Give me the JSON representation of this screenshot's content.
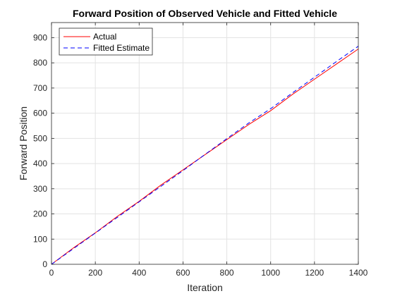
{
  "chart_data": {
    "type": "line",
    "title": "Forward Position of Observed Vehicle and Fitted Vehicle",
    "xlabel": "Iteration",
    "ylabel": "Forward Position",
    "xlim": [
      0,
      1400
    ],
    "ylim": [
      0,
      960
    ],
    "xticks": [
      0,
      200,
      400,
      600,
      800,
      1000,
      1200,
      1400
    ],
    "yticks": [
      0,
      100,
      200,
      300,
      400,
      500,
      600,
      700,
      800,
      900
    ],
    "grid": true,
    "legend_position": "top-left",
    "series": [
      {
        "name": "Actual",
        "color": "#ff0000",
        "style": "solid",
        "x": [
          0,
          100,
          200,
          300,
          400,
          500,
          600,
          700,
          800,
          900,
          1000,
          1100,
          1200,
          1300,
          1400
        ],
        "y": [
          0,
          65,
          125,
          190,
          250,
          315,
          375,
          435,
          495,
          555,
          610,
          675,
          735,
          795,
          855
        ]
      },
      {
        "name": "Fitted Estimate",
        "color": "#0000ff",
        "style": "dashed",
        "x": [
          0,
          100,
          200,
          300,
          400,
          500,
          600,
          700,
          800,
          900,
          1000,
          1100,
          1200,
          1300,
          1400
        ],
        "y": [
          0,
          62,
          124,
          186,
          248,
          310,
          372,
          436,
          499,
          561,
          618,
          681,
          743,
          805,
          866
        ]
      }
    ]
  }
}
